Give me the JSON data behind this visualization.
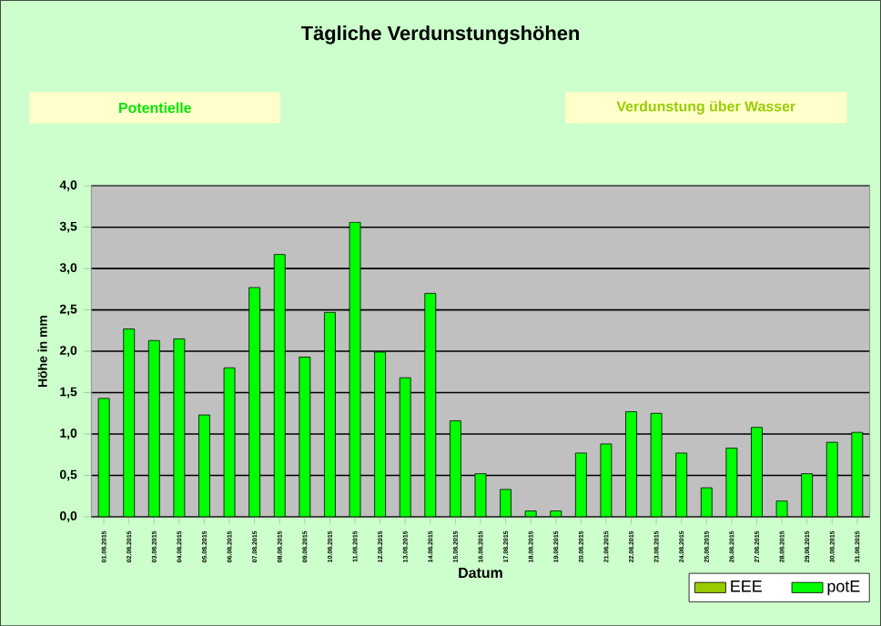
{
  "chart_data": {
    "type": "bar",
    "title": "Tägliche Verdunstungshöhen",
    "annotations": [
      "Potentielle",
      "Verdunstung über Wasser"
    ],
    "xlabel": "Datum",
    "ylabel": "Höhe in mm",
    "categories": [
      "01.08.2015",
      "02.08.2015",
      "03.08.2015",
      "04.08.2015",
      "05.08.2015",
      "06.08.2015",
      "07.08.2015",
      "08.08.2015",
      "09.08.2015",
      "10.08.2015",
      "11.08.2015",
      "12.08.2015",
      "13.08.2015",
      "14.08.2015",
      "15.08.2015",
      "16.08.2015",
      "17.08.2015",
      "18.08.2015",
      "19.08.2015",
      "20.08.2015",
      "21.08.2015",
      "22.08.2015",
      "23.08.2015",
      "24.08.2015",
      "25.08.2015",
      "26.08.2015",
      "27.08.2015",
      "28.08.2015",
      "29.08.2015",
      "30.08.2015",
      "31.08.2015"
    ],
    "series": [
      {
        "name": "EEE",
        "color": "#99cc00",
        "values": [
          null,
          null,
          null,
          null,
          null,
          null,
          null,
          null,
          null,
          null,
          null,
          null,
          null,
          null,
          null,
          null,
          null,
          null,
          null,
          null,
          null,
          null,
          null,
          null,
          null,
          null,
          null,
          null,
          null,
          null,
          null
        ]
      },
      {
        "name": "potE",
        "color": "#00ff00",
        "values": [
          1.43,
          2.27,
          2.13,
          2.15,
          1.23,
          1.8,
          2.77,
          3.17,
          1.93,
          2.47,
          3.56,
          1.99,
          1.68,
          2.7,
          1.16,
          0.52,
          0.33,
          0.07,
          0.07,
          0.77,
          0.88,
          1.27,
          1.25,
          0.77,
          0.35,
          0.83,
          1.08,
          0.19,
          0.52,
          0.9,
          1.02
        ]
      }
    ],
    "ylim": [
      0,
      4
    ],
    "yticks": [
      {
        "value": 0,
        "label": "0,0"
      },
      {
        "value": 0.5,
        "label": "0,5"
      },
      {
        "value": 1,
        "label": "1,0"
      },
      {
        "value": 1.5,
        "label": "1,5"
      },
      {
        "value": 2,
        "label": "2,0"
      },
      {
        "value": 2.5,
        "label": "2,5"
      },
      {
        "value": 3,
        "label": "3,0"
      },
      {
        "value": 3.5,
        "label": "3,5"
      },
      {
        "value": 4,
        "label": "4,0"
      }
    ],
    "grid": "y",
    "legend": "bottom right"
  }
}
